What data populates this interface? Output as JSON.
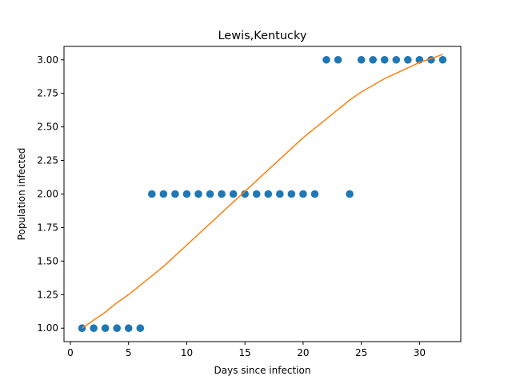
{
  "chart_data": {
    "type": "scatter",
    "title": "Lewis,Kentucky",
    "xlabel": "Days since infection",
    "ylabel": "Population infected",
    "xlim": [
      -0.55,
      33.55
    ],
    "ylim": [
      0.9,
      3.1
    ],
    "xticks": [
      0,
      5,
      10,
      15,
      20,
      25,
      30
    ],
    "yticks": [
      1.0,
      1.25,
      1.5,
      1.75,
      2.0,
      2.25,
      2.5,
      2.75,
      3.0
    ],
    "grid": false,
    "series": [
      {
        "kind": "scatter",
        "color": "#1f77b4",
        "x": [
          1,
          2,
          3,
          4,
          5,
          6,
          7,
          8,
          9,
          10,
          11,
          12,
          13,
          14,
          15,
          16,
          17,
          18,
          19,
          20,
          21,
          22,
          23,
          24,
          25,
          26,
          27,
          28,
          29,
          30,
          31,
          32
        ],
        "y": [
          1,
          1,
          1,
          1,
          1,
          1,
          2,
          2,
          2,
          2,
          2,
          2,
          2,
          2,
          2,
          2,
          2,
          2,
          2,
          2,
          2,
          3,
          3,
          2,
          3,
          3,
          3,
          3,
          3,
          3,
          3,
          3
        ]
      },
      {
        "kind": "line",
        "color": "#ff7f0e",
        "x": [
          1,
          2,
          3,
          4,
          5,
          6,
          7,
          8,
          9,
          10,
          11,
          12,
          13,
          14,
          15,
          16,
          17,
          18,
          19,
          20,
          21,
          22,
          23,
          24,
          25,
          26,
          27,
          28,
          29,
          30,
          31,
          32
        ],
        "y": [
          1.0,
          1.06,
          1.12,
          1.19,
          1.25,
          1.32,
          1.39,
          1.46,
          1.54,
          1.62,
          1.7,
          1.78,
          1.86,
          1.94,
          2.02,
          2.1,
          2.18,
          2.26,
          2.34,
          2.42,
          2.49,
          2.56,
          2.63,
          2.7,
          2.76,
          2.81,
          2.86,
          2.9,
          2.94,
          2.98,
          3.01,
          3.04
        ]
      }
    ]
  }
}
